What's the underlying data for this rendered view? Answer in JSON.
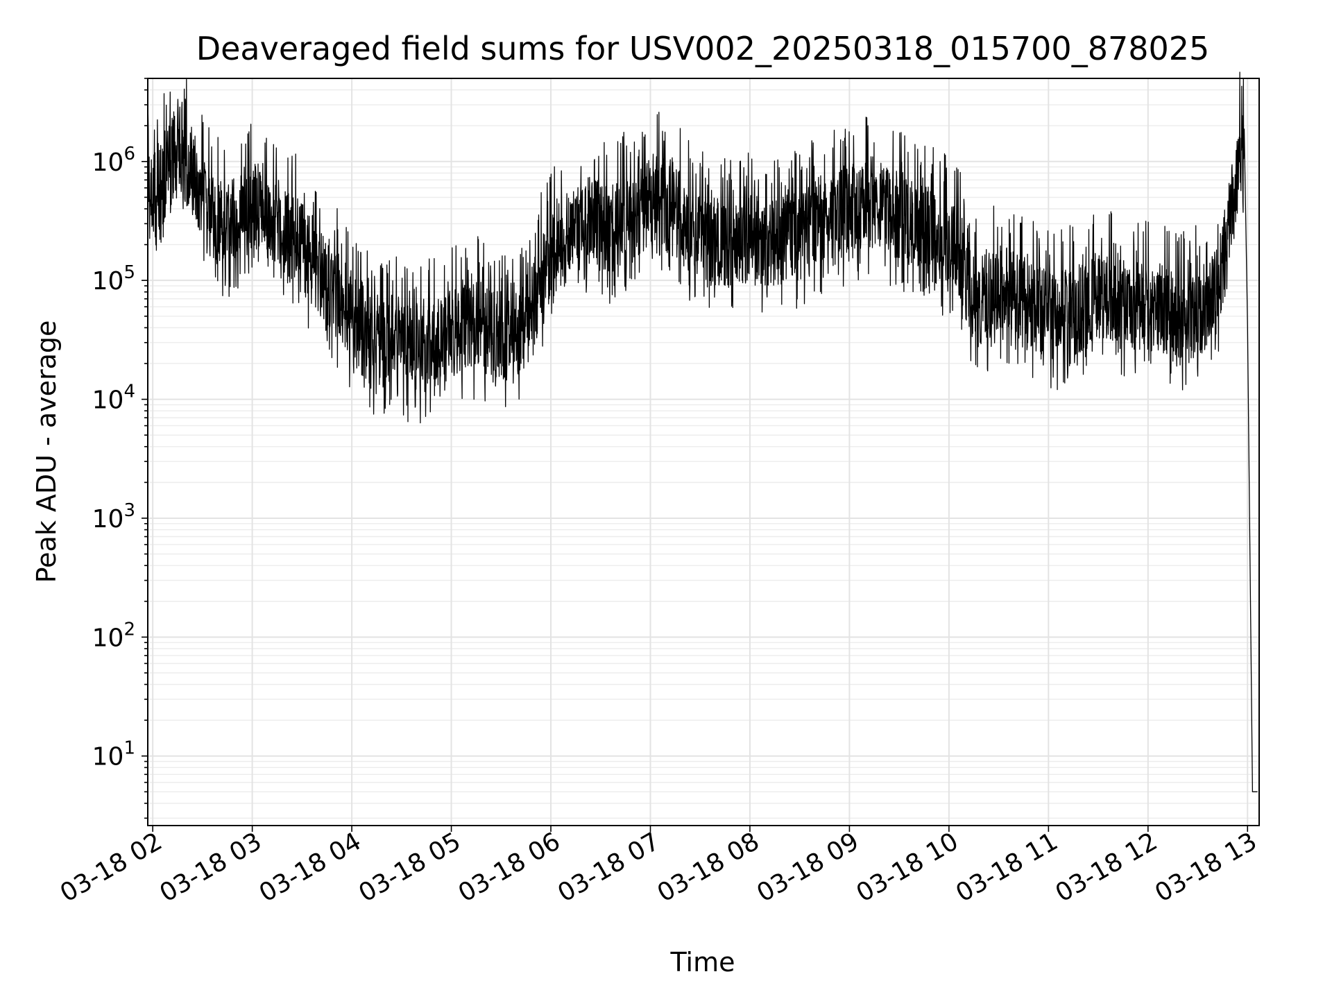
{
  "chart_data": {
    "type": "line",
    "title": "Deaveraged field sums for USV002_20250318_015700_878025",
    "xlabel": "Time",
    "ylabel": "Peak ADU - average",
    "yscale": "log",
    "ylim": [
      2.6,
      5000000
    ],
    "xlim": [
      "03-18 01:57",
      "03-18 13:07"
    ],
    "grid": true,
    "line_color": "#000000",
    "x_ticks": [
      "03-18 02",
      "03-18 03",
      "03-18 04",
      "03-18 05",
      "03-18 06",
      "03-18 07",
      "03-18 08",
      "03-18 09",
      "03-18 10",
      "03-18 11",
      "03-18 12",
      "03-18 13"
    ],
    "y_ticks": [
      {
        "value": 10,
        "base": "10",
        "exp": "1"
      },
      {
        "value": 100,
        "base": "10",
        "exp": "2"
      },
      {
        "value": 1000,
        "base": "10",
        "exp": "3"
      },
      {
        "value": 10000,
        "base": "10",
        "exp": "4"
      },
      {
        "value": 100000,
        "base": "10",
        "exp": "5"
      },
      {
        "value": 1000000,
        "base": "10",
        "exp": "6"
      }
    ],
    "series": [
      {
        "x": [
          "03-18 01:57",
          "03-18 02:05",
          "03-18 02:15",
          "03-18 02:25",
          "03-18 02:35",
          "03-18 02:45",
          "03-18 02:55",
          "03-18 03:05",
          "03-18 03:15",
          "03-18 03:25",
          "03-18 03:35",
          "03-18 03:45",
          "03-18 03:55",
          "03-18 04:05",
          "03-18 04:15",
          "03-18 04:25",
          "03-18 04:35",
          "03-18 04:45",
          "03-18 04:55",
          "03-18 05:05",
          "03-18 05:15",
          "03-18 05:25",
          "03-18 05:35",
          "03-18 05:45",
          "03-18 05:55",
          "03-18 06:05",
          "03-18 06:15",
          "03-18 06:25",
          "03-18 06:35",
          "03-18 06:45",
          "03-18 06:55",
          "03-18 07:05",
          "03-18 07:15",
          "03-18 07:25",
          "03-18 07:35",
          "03-18 07:45",
          "03-18 07:55",
          "03-18 08:05",
          "03-18 08:15",
          "03-18 08:25",
          "03-18 08:35",
          "03-18 08:45",
          "03-18 08:55",
          "03-18 09:05",
          "03-18 09:15",
          "03-18 09:25",
          "03-18 09:35",
          "03-18 09:45",
          "03-18 09:55",
          "03-18 10:05",
          "03-18 10:15",
          "03-18 10:25",
          "03-18 10:35",
          "03-18 10:45",
          "03-18 10:55",
          "03-18 11:05",
          "03-18 11:15",
          "03-18 11:25",
          "03-18 11:35",
          "03-18 11:45",
          "03-18 11:55",
          "03-18 12:05",
          "03-18 12:15",
          "03-18 12:25",
          "03-18 12:35",
          "03-18 12:45",
          "03-18 12:52",
          "03-18 12:55",
          "03-18 12:57",
          "03-18 12:58",
          "03-18 13:00",
          "03-18 13:03",
          "03-18 13:06"
        ],
        "y": [
          450000,
          600000,
          1200000,
          700000,
          300000,
          250000,
          350000,
          400000,
          300000,
          200000,
          150000,
          80000,
          60000,
          35000,
          25000,
          30000,
          25000,
          25000,
          30000,
          35000,
          40000,
          35000,
          30000,
          35000,
          100000,
          200000,
          250000,
          300000,
          250000,
          300000,
          350000,
          500000,
          400000,
          250000,
          200000,
          180000,
          200000,
          220000,
          180000,
          220000,
          250000,
          300000,
          350000,
          400000,
          400000,
          350000,
          300000,
          250000,
          200000,
          180000,
          60000,
          70000,
          80000,
          60000,
          50000,
          45000,
          50000,
          60000,
          65000,
          60000,
          55000,
          55000,
          50000,
          45000,
          55000,
          120000,
          500000,
          900000,
          1500000,
          900000,
          40000,
          5,
          5
        ]
      }
    ]
  }
}
